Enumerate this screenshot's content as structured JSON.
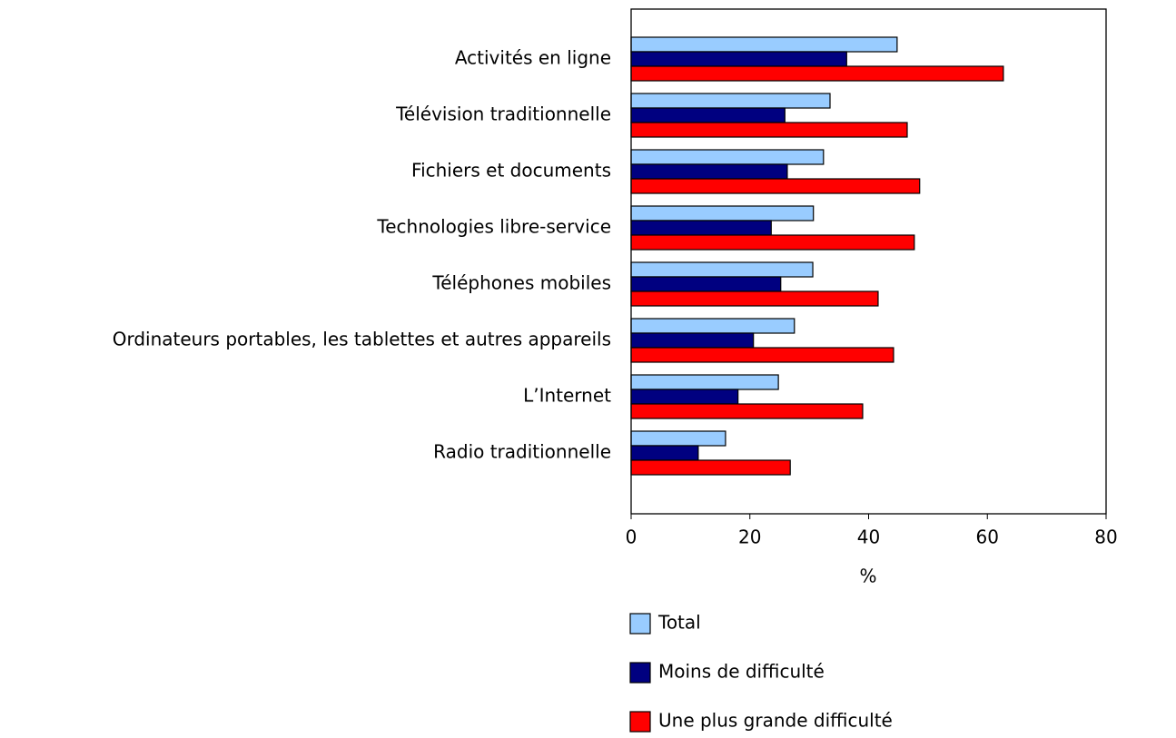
{
  "chart_data": {
    "type": "hbar",
    "xlabel": "%",
    "categories": [
      "Activités en ligne",
      "Télévision traditionnelle",
      "Fichiers et documents",
      "Technologies libre-service",
      "Téléphones mobiles",
      "Ordinateurs portables, les tablettes et autres appareils",
      "L’Internet",
      "Radio traditionnelle"
    ],
    "series": [
      {
        "name": "Total",
        "color": "#99ccff",
        "values": [
          44.8,
          33.5,
          32.4,
          30.7,
          30.6,
          27.5,
          24.8,
          15.9
        ]
      },
      {
        "name": "Moins de difficulté",
        "color": "#000080",
        "values": [
          36.3,
          25.9,
          26.3,
          23.6,
          25.2,
          20.6,
          18.0,
          11.3
        ]
      },
      {
        "name": "Une plus grande difficulté",
        "color": "#ff0000",
        "values": [
          62.7,
          46.5,
          48.6,
          47.7,
          41.6,
          44.2,
          39.0,
          26.8
        ]
      }
    ],
    "xlim": [
      0,
      80
    ],
    "xticks": [
      0,
      20,
      40,
      60,
      80
    ]
  }
}
